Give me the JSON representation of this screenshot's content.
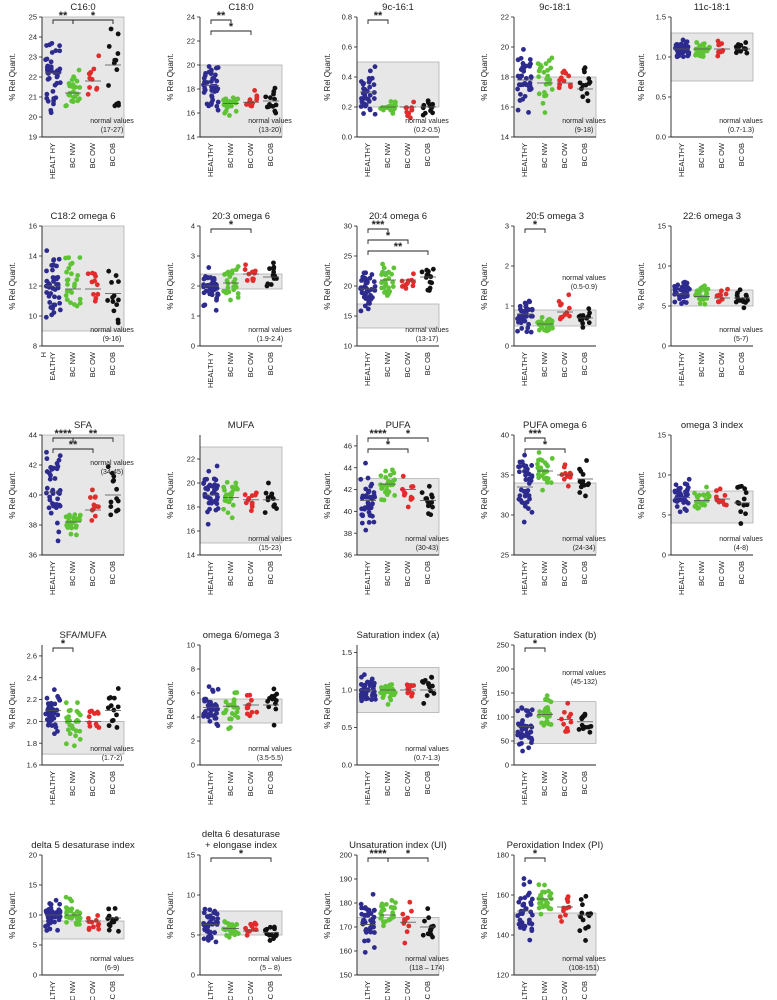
{
  "colors": {
    "HEALTHY": "#2e2b8f",
    "BC NW": "#5ec435",
    "BC OW": "#e22b2b",
    "BC OB": "#111111",
    "normal_band": "#e7e7e7"
  },
  "groups": [
    "HEALTHY",
    "BC NW",
    "BC OW",
    "BC OB"
  ],
  "ylabel": "% Rel Quant.",
  "chart_data": [
    {
      "type": "scatter",
      "title": "C16:0",
      "ylim": [
        19,
        25
      ],
      "yticks": [
        19,
        20,
        21,
        22,
        23,
        24,
        25
      ],
      "xticklabels": [
        "HEALT HY",
        "BC NW",
        "BC OW",
        "BC OB"
      ],
      "normal_band": [
        17,
        27
      ],
      "normal_text": [
        "normal values",
        "(17-27)"
      ],
      "normal_label_pos": "bottom-right",
      "brackets": [
        {
          "from": 0,
          "to": 1,
          "label": "**",
          "level": 0
        },
        {
          "from": 1,
          "to": 3,
          "label": "*",
          "level": 0
        }
      ],
      "n": [
        40,
        25,
        11,
        13
      ],
      "median": [
        22.2,
        21.2,
        21.8,
        22.6
      ],
      "spread": [
        1.1,
        0.55,
        0.7,
        1.3
      ]
    },
    {
      "type": "scatter",
      "title": "C18:0",
      "ylim": [
        14,
        24
      ],
      "yticks": [
        14,
        16,
        18,
        20,
        22,
        24
      ],
      "xticklabels": [
        "HEALTHY",
        "BC NW",
        "BC OW",
        "BC OB"
      ],
      "normal_band": [
        13,
        20
      ],
      "normal_text": [
        "normal values",
        "(13-20)"
      ],
      "normal_label_pos": "bottom-right",
      "brackets": [
        {
          "from": 0,
          "to": 1,
          "label": "**",
          "level": 0
        },
        {
          "from": 0,
          "to": 2,
          "label": "*",
          "level": 1
        }
      ],
      "n": [
        40,
        25,
        11,
        13
      ],
      "median": [
        18.3,
        16.8,
        16.9,
        17.0
      ],
      "spread": [
        1.1,
        0.5,
        0.6,
        0.9
      ]
    },
    {
      "type": "scatter",
      "title": "9c-16:1",
      "ylim": [
        0.0,
        0.8
      ],
      "yticks": [
        0.0,
        0.2,
        0.4,
        0.6,
        0.8
      ],
      "xticklabels": [
        "HEALTHY",
        "BC NW",
        "BC OW",
        "BC OB"
      ],
      "normal_band": [
        0.2,
        0.5
      ],
      "normal_text": [
        "normal values",
        "(0.2-0.5)"
      ],
      "normal_label_pos": "bottom-right",
      "brackets": [
        {
          "from": 0,
          "to": 1,
          "label": "**",
          "level": 0
        }
      ],
      "n": [
        35,
        25,
        11,
        13
      ],
      "median": [
        0.3,
        0.2,
        0.2,
        0.2
      ],
      "spread": [
        0.1,
        0.03,
        0.05,
        0.05
      ]
    },
    {
      "type": "scatter",
      "title": "9c-18:1",
      "ylim": [
        14,
        22
      ],
      "yticks": [
        14,
        16,
        18,
        20,
        22
      ],
      "xticklabels": [
        "HEALTHY",
        "BC NW",
        "BC OW",
        "BC OB"
      ],
      "normal_band": [
        9,
        18
      ],
      "normal_text": [
        "normal values",
        "(9-18)"
      ],
      "normal_label_pos": "bottom-right",
      "brackets": [],
      "n": [
        40,
        25,
        11,
        13
      ],
      "median": [
        17.8,
        17.6,
        17.6,
        17.2
      ],
      "spread": [
        1.2,
        1.0,
        0.5,
        0.9
      ]
    },
    {
      "type": "scatter",
      "title": "11c-18:1",
      "ylim": [
        0.0,
        1.5
      ],
      "yticks": [
        0.0,
        0.5,
        1.0,
        1.5
      ],
      "xticklabels": [
        "HEALTHY",
        "BC NW",
        "BC OW",
        "BC OB"
      ],
      "normal_band": [
        0.7,
        1.3
      ],
      "normal_text": [
        "normal values",
        "(0.7-1.3)"
      ],
      "normal_label_pos": "bottom-right",
      "brackets": [],
      "n": [
        40,
        25,
        11,
        13
      ],
      "median": [
        1.1,
        1.1,
        1.1,
        1.1
      ],
      "spread": [
        0.08,
        0.07,
        0.07,
        0.05
      ]
    },
    {
      "type": "scatter",
      "title": "C18:2 omega 6",
      "ylim": [
        8,
        16
      ],
      "yticks": [
        8,
        10,
        12,
        14,
        16
      ],
      "xticklabels": [
        "H\nEALTHY",
        "BC NW",
        "BC OW",
        "BC OB"
      ],
      "normal_band": [
        9,
        16
      ],
      "normal_text": [
        "normal values",
        "(9-16)"
      ],
      "normal_label_pos": "bottom-right",
      "brackets": [],
      "n": [
        40,
        25,
        11,
        13
      ],
      "median": [
        12.0,
        11.8,
        11.8,
        11.5
      ],
      "spread": [
        1.2,
        1.3,
        1.0,
        1.0
      ]
    },
    {
      "type": "scatter",
      "title": "20:3 omega 6",
      "ylim": [
        0,
        4
      ],
      "yticks": [
        0,
        1,
        2,
        3,
        4
      ],
      "xticklabels": [
        "HEALTH Y",
        "BC NW",
        "BC OW",
        "BC OB"
      ],
      "normal_band": [
        1.9,
        2.4
      ],
      "normal_text": [
        "normal values",
        "(1.9-2.4)"
      ],
      "normal_label_pos": "bottom-right",
      "brackets": [
        {
          "from": 0,
          "to": 2,
          "label": "*",
          "level": 0
        }
      ],
      "n": [
        40,
        25,
        11,
        13
      ],
      "median": [
        2.0,
        2.1,
        2.4,
        2.3
      ],
      "spread": [
        0.35,
        0.3,
        0.3,
        0.35
      ]
    },
    {
      "type": "scatter",
      "title": "20:4 omega 6",
      "ylim": [
        10,
        30
      ],
      "yticks": [
        10,
        15,
        20,
        25,
        30
      ],
      "xticklabels": [
        "HEALTHY",
        "BC NW",
        "BC OW",
        "BC OB"
      ],
      "normal_band": [
        13,
        17
      ],
      "normal_text": [
        "normal values",
        "(13-17)"
      ],
      "normal_label_pos": "bottom-right",
      "brackets": [
        {
          "from": 0,
          "to": 1,
          "label": "***",
          "level": 0
        },
        {
          "from": 0,
          "to": 2,
          "label": "*",
          "level": 1
        },
        {
          "from": 0,
          "to": 3,
          "label": "**",
          "level": 2
        }
      ],
      "n": [
        40,
        25,
        11,
        13
      ],
      "median": [
        19.5,
        21.0,
        21.0,
        21.5
      ],
      "spread": [
        1.8,
        1.5,
        1.0,
        1.5
      ]
    },
    {
      "type": "scatter",
      "title": "20:5 omega 3",
      "ylim": [
        0,
        3
      ],
      "yticks": [
        0,
        1,
        2,
        3
      ],
      "xticklabels": [
        "HEALTHY",
        "BC NW",
        "BC OW",
        "BC OB"
      ],
      "normal_band": [
        0.5,
        0.9
      ],
      "normal_text": [
        "normal values",
        "(0.5-0.9)"
      ],
      "normal_label_pos": "middle-right",
      "brackets": [
        {
          "from": 0,
          "to": 1,
          "label": "*",
          "level": 0
        }
      ],
      "n": [
        40,
        25,
        11,
        13
      ],
      "median": [
        0.8,
        0.55,
        0.85,
        0.7
      ],
      "spread": [
        0.3,
        0.12,
        0.2,
        0.2
      ]
    },
    {
      "type": "scatter",
      "title": "22:6 omega 3",
      "ylim": [
        0,
        15
      ],
      "yticks": [
        0,
        5,
        10,
        15
      ],
      "xticklabels": [
        "HEALTHY",
        "BC NW",
        "BC OW",
        "BC OB"
      ],
      "normal_band": [
        5,
        7
      ],
      "normal_text": [
        "normal values",
        "(5-7)"
      ],
      "normal_label_pos": "bottom-right",
      "brackets": [],
      "n": [
        40,
        25,
        11,
        13
      ],
      "median": [
        6.5,
        6.2,
        6.0,
        6.0
      ],
      "spread": [
        1.0,
        0.9,
        0.9,
        1.0
      ]
    },
    {
      "type": "scatter",
      "title": "SFA",
      "ylim": [
        36,
        44
      ],
      "yticks": [
        36,
        38,
        40,
        42,
        44
      ],
      "xticklabels": [
        "HEALTHY",
        "BC NW",
        "BC OW",
        "BC OB"
      ],
      "normal_band": [
        34,
        45
      ],
      "normal_text": [
        "normal values",
        "(34-45)"
      ],
      "normal_label_pos": "top-right",
      "brackets": [
        {
          "from": 0,
          "to": 1,
          "label": "****",
          "level": 0
        },
        {
          "from": 1,
          "to": 3,
          "label": "**",
          "level": 0
        },
        {
          "from": 0,
          "to": 2,
          "label": "**",
          "level": 1
        }
      ],
      "n": [
        40,
        25,
        11,
        13
      ],
      "median": [
        40.2,
        38.2,
        39.0,
        40.0
      ],
      "spread": [
        1.5,
        0.5,
        0.9,
        1.3
      ]
    },
    {
      "type": "scatter",
      "title": "MUFA",
      "ylim": [
        14,
        24
      ],
      "yticks": [
        14,
        16,
        18,
        20,
        22
      ],
      "xticklabels": [
        "HEALTHY",
        "BC NW",
        "BC OW",
        "BC OB"
      ],
      "normal_band": [
        15,
        23
      ],
      "normal_text": [
        "normal values",
        "(15-23)"
      ],
      "normal_label_pos": "bottom-right",
      "brackets": [],
      "n": [
        40,
        25,
        11,
        13
      ],
      "median": [
        19.0,
        18.8,
        18.6,
        18.6
      ],
      "spread": [
        1.4,
        1.0,
        0.6,
        0.9
      ]
    },
    {
      "type": "scatter",
      "title": "PUFA",
      "ylim": [
        36,
        47
      ],
      "yticks": [
        36,
        38,
        40,
        42,
        44,
        46
      ],
      "xticklabels": [
        "HEALTHY",
        "BC NW",
        "BC OW",
        "BC OB"
      ],
      "normal_band": [
        30,
        43
      ],
      "normal_text": [
        "normal values",
        "(30-43)"
      ],
      "normal_label_pos": "bottom-right",
      "brackets": [
        {
          "from": 0,
          "to": 1,
          "label": "****",
          "level": 0
        },
        {
          "from": 1,
          "to": 3,
          "label": "*",
          "level": 0
        },
        {
          "from": 0,
          "to": 2,
          "label": "*",
          "level": 1
        }
      ],
      "n": [
        40,
        25,
        11,
        13
      ],
      "median": [
        41.0,
        42.5,
        42.0,
        41.0
      ],
      "spread": [
        1.6,
        0.9,
        0.8,
        1.3
      ]
    },
    {
      "type": "scatter",
      "title": "PUFA omega 6",
      "ylim": [
        25,
        40
      ],
      "yticks": [
        25,
        30,
        35,
        40
      ],
      "xticklabels": [
        "HEALTHY",
        "BC NW",
        "BC OW",
        "BC OB"
      ],
      "normal_band": [
        24,
        34
      ],
      "normal_text": [
        "normal values",
        "(24-34)"
      ],
      "normal_label_pos": "bottom-right",
      "brackets": [
        {
          "from": 0,
          "to": 1,
          "label": "***",
          "level": 0
        },
        {
          "from": 0,
          "to": 2,
          "label": "*",
          "level": 1
        }
      ],
      "n": [
        40,
        25,
        11,
        13
      ],
      "median": [
        33.5,
        35.5,
        35.0,
        34.5
      ],
      "spread": [
        2.0,
        1.3,
        0.8,
        1.6
      ]
    },
    {
      "type": "scatter",
      "title": "omega 3 index",
      "ylim": [
        0,
        15
      ],
      "yticks": [
        0,
        5,
        10,
        15
      ],
      "xticklabels": [
        "HEALTHY",
        "BC NW",
        "BC OW",
        "BC OB"
      ],
      "normal_band": [
        4,
        8
      ],
      "normal_text": [
        "normal values",
        "(4-8)"
      ],
      "normal_label_pos": "bottom-right",
      "brackets": [],
      "n": [
        40,
        25,
        11,
        13
      ],
      "median": [
        7.2,
        6.8,
        7.0,
        6.5
      ],
      "spread": [
        1.2,
        1.0,
        1.0,
        1.2
      ]
    },
    {
      "type": "scatter",
      "title": "SFA/MUFA",
      "ylim": [
        1.6,
        2.7
      ],
      "yticks": [
        1.6,
        1.8,
        2.0,
        2.2,
        2.4,
        2.6
      ],
      "xticklabels": [
        "HEALTHY",
        "BC NW",
        "BC OW",
        "BC OB"
      ],
      "normal_band": [
        1.7,
        2.0
      ],
      "normal_text": [
        "normal values",
        "(1.7-2)"
      ],
      "normal_label_pos": "bottom-right",
      "brackets": [
        {
          "from": 0,
          "to": 1,
          "label": "*",
          "level": 0
        }
      ],
      "n": [
        40,
        25,
        11,
        13
      ],
      "median": [
        2.1,
        2.0,
        2.0,
        2.1
      ],
      "spread": [
        0.12,
        0.12,
        0.08,
        0.15
      ]
    },
    {
      "type": "scatter",
      "title": "omega 6/omega 3",
      "ylim": [
        0,
        10
      ],
      "yticks": [
        0,
        2,
        4,
        6,
        8,
        10
      ],
      "xticklabels": [
        "HEALTHY",
        "BC NW",
        "BC OW",
        "BC OB"
      ],
      "normal_band": [
        3.5,
        5.5
      ],
      "normal_text": [
        "normal values",
        "(3.5-5.5)"
      ],
      "normal_label_pos": "bottom-right",
      "brackets": [],
      "n": [
        40,
        25,
        11,
        13
      ],
      "median": [
        4.8,
        4.9,
        5.0,
        5.0
      ],
      "spread": [
        1.0,
        1.0,
        0.9,
        1.3
      ]
    },
    {
      "type": "scatter",
      "title": "Saturation index (a)",
      "ylim": [
        0.0,
        1.6
      ],
      "yticks": [
        0.0,
        0.5,
        1.0,
        1.5
      ],
      "xticklabels": [
        "HEALTHY",
        "BC NW",
        "BC OW",
        "BC OB"
      ],
      "normal_band": [
        0.7,
        1.3
      ],
      "normal_text": [
        "normal values",
        "(0.7-1.3)"
      ],
      "normal_label_pos": "bottom-right",
      "brackets": [],
      "n": [
        40,
        25,
        11,
        13
      ],
      "median": [
        1.0,
        1.0,
        1.0,
        1.0
      ],
      "spread": [
        0.12,
        0.1,
        0.08,
        0.12
      ]
    },
    {
      "type": "scatter",
      "title": "Saturation index (b)",
      "ylim": [
        0,
        250
      ],
      "yticks": [
        0,
        50,
        100,
        150,
        200,
        250
      ],
      "xticklabels": [
        "HEALTHY",
        "BC NW",
        "BC OW",
        "BC OB"
      ],
      "normal_band": [
        45,
        132
      ],
      "normal_text": [
        "normal values",
        "(45-132)"
      ],
      "normal_label_pos": "top-right",
      "brackets": [
        {
          "from": 0,
          "to": 1,
          "label": "*",
          "level": 0
        }
      ],
      "n": [
        40,
        25,
        11,
        13
      ],
      "median": [
        80,
        105,
        95,
        90
      ],
      "spread": [
        25,
        18,
        25,
        12
      ]
    },
    {
      "type": "scatter",
      "title": "delta 5 desaturase index",
      "ylim": [
        0,
        20
      ],
      "yticks": [
        0,
        5,
        10,
        15,
        20
      ],
      "xticklabels": [
        "HEALTHY",
        "BC NW",
        "BC OW",
        "BC OB"
      ],
      "normal_band": [
        6,
        9
      ],
      "normal_text": [
        "normal values",
        "(6-9)"
      ],
      "normal_label_pos": "bottom-right",
      "brackets": [],
      "n": [
        40,
        25,
        11,
        13
      ],
      "median": [
        10.0,
        10.0,
        9.0,
        9.5
      ],
      "spread": [
        1.5,
        1.6,
        1.0,
        1.5
      ]
    },
    {
      "type": "scatter",
      "title": "delta 6 desaturase\n+ elongase index",
      "ylim": [
        0,
        15
      ],
      "yticks": [
        0,
        5,
        10,
        15
      ],
      "xticklabels": [
        "HEALTHY",
        "BC NW",
        "BC OW",
        "BC OB"
      ],
      "normal_band": [
        5,
        8
      ],
      "normal_text": [
        "normal values",
        "(5 – 8)"
      ],
      "normal_label_pos": "bottom-right",
      "brackets": [
        {
          "from": 0,
          "to": 3,
          "label": "*",
          "level": 0
        }
      ],
      "n": [
        40,
        25,
        11,
        13
      ],
      "median": [
        6.3,
        5.8,
        5.5,
        5.3
      ],
      "spread": [
        1.3,
        0.8,
        0.7,
        0.9
      ]
    },
    {
      "type": "scatter",
      "title": "Unsaturation index (UI)",
      "ylim": [
        150,
        200
      ],
      "yticks": [
        150,
        160,
        170,
        180,
        190,
        200
      ],
      "xticklabels": [
        "HEALTHY",
        "BC NW",
        "BC OW",
        "BC OB"
      ],
      "normal_band": [
        118,
        174
      ],
      "normal_text": [
        "normal values",
        "(118 – 174)"
      ],
      "normal_label_pos": "bottom-right",
      "brackets": [
        {
          "from": 0,
          "to": 1,
          "label": "****",
          "level": 0
        },
        {
          "from": 1,
          "to": 3,
          "label": "*",
          "level": 0
        }
      ],
      "n": [
        40,
        25,
        11,
        13
      ],
      "median": [
        171,
        175,
        172,
        170
      ],
      "spread": [
        6,
        3.5,
        5,
        6
      ]
    },
    {
      "type": "scatter",
      "title": "Peroxidation Index (PI)",
      "ylim": [
        120,
        180
      ],
      "yticks": [
        120,
        140,
        160,
        180
      ],
      "xticklabels": [
        "HEALTHY",
        "BC NW",
        "BC OW",
        "BC OB"
      ],
      "normal_band": [
        108,
        151
      ],
      "normal_text": [
        "normal values",
        "(108-151)"
      ],
      "normal_label_pos": "bottom-right",
      "brackets": [
        {
          "from": 0,
          "to": 1,
          "label": "*",
          "level": 0
        }
      ],
      "n": [
        40,
        25,
        11,
        13
      ],
      "median": [
        152,
        158,
        154,
        150
      ],
      "spread": [
        8,
        5,
        5,
        8
      ]
    }
  ]
}
